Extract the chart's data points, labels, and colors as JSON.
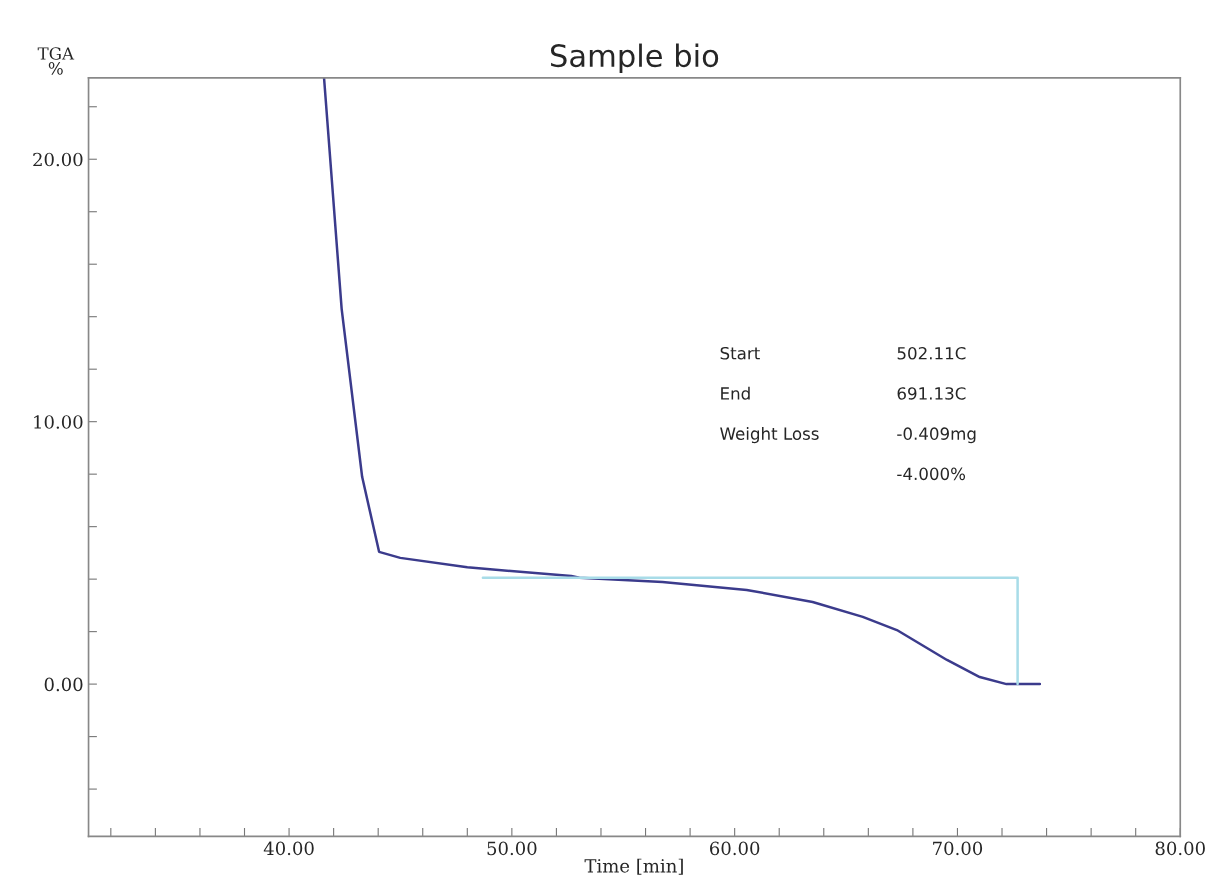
{
  "chart_data": {
    "type": "line",
    "title": "Sample bio",
    "xlabel": "Time [min]",
    "ylabel": "TGA\n%",
    "series": [
      {
        "color": "#3b3b8c",
        "x": [
          41.57,
          42.36,
          43.28,
          44.04,
          44.99,
          48.0,
          52.67,
          53.03,
          56.76,
          60.54,
          63.5,
          65.75,
          67.28,
          69.53,
          71.0,
          72.2,
          73.7
        ],
        "values": [
          23.1,
          14.3,
          7.9,
          5.04,
          4.81,
          4.45,
          4.12,
          4.05,
          3.89,
          3.59,
          3.13,
          2.56,
          2.06,
          0.92,
          0.27,
          0.0,
          0.0
        ]
      },
      {
        "color": "#a8dce8",
        "x": [
          48.7,
          72.7,
          72.7
        ],
        "values": [
          4.05,
          4.05,
          0.0
        ]
      }
    ],
    "annotations": [
      "Start",
      "502.11C",
      "End",
      "691.13C",
      "Weight Loss",
      "-0.409mg",
      "-4.000%"
    ],
    "xlim": [
      31,
      80
    ],
    "ylim": [
      -5.8,
      23.1
    ],
    "xticks": [
      {
        "value": 32,
        "label": null
      },
      {
        "value": 34,
        "label": null
      },
      {
        "value": 36,
        "label": null
      },
      {
        "value": 38,
        "label": null
      },
      {
        "value": 40,
        "label": "40.00"
      },
      {
        "value": 42,
        "label": null
      },
      {
        "value": 44,
        "label": null
      },
      {
        "value": 46,
        "label": null
      },
      {
        "value": 48,
        "label": null
      },
      {
        "value": 50,
        "label": "50.00"
      },
      {
        "value": 52,
        "label": null
      },
      {
        "value": 54,
        "label": null
      },
      {
        "value": 56,
        "label": null
      },
      {
        "value": 58,
        "label": null
      },
      {
        "value": 60,
        "label": "60.00"
      },
      {
        "value": 62,
        "label": null
      },
      {
        "value": 64,
        "label": null
      },
      {
        "value": 66,
        "label": null
      },
      {
        "value": 68,
        "label": null
      },
      {
        "value": 70,
        "label": "70.00"
      },
      {
        "value": 72,
        "label": null
      },
      {
        "value": 74,
        "label": null
      },
      {
        "value": 76,
        "label": null
      },
      {
        "value": 78,
        "label": null
      },
      {
        "value": 80,
        "label": "80.00"
      }
    ],
    "yticks": [
      {
        "value": -4,
        "label": null
      },
      {
        "value": -2,
        "label": null
      },
      {
        "value": 0,
        "label": "0.00"
      },
      {
        "value": 2,
        "label": null
      },
      {
        "value": 4,
        "label": null
      },
      {
        "value": 6,
        "label": null
      },
      {
        "value": 8,
        "label": null
      },
      {
        "value": 10,
        "label": "10.00"
      },
      {
        "value": 12,
        "label": null
      },
      {
        "value": 14,
        "label": null
      },
      {
        "value": 16,
        "label": null
      },
      {
        "value": 18,
        "label": null
      },
      {
        "value": 20,
        "label": "20.00"
      },
      {
        "value": 22,
        "label": null
      }
    ],
    "grid": false,
    "legend": false
  }
}
